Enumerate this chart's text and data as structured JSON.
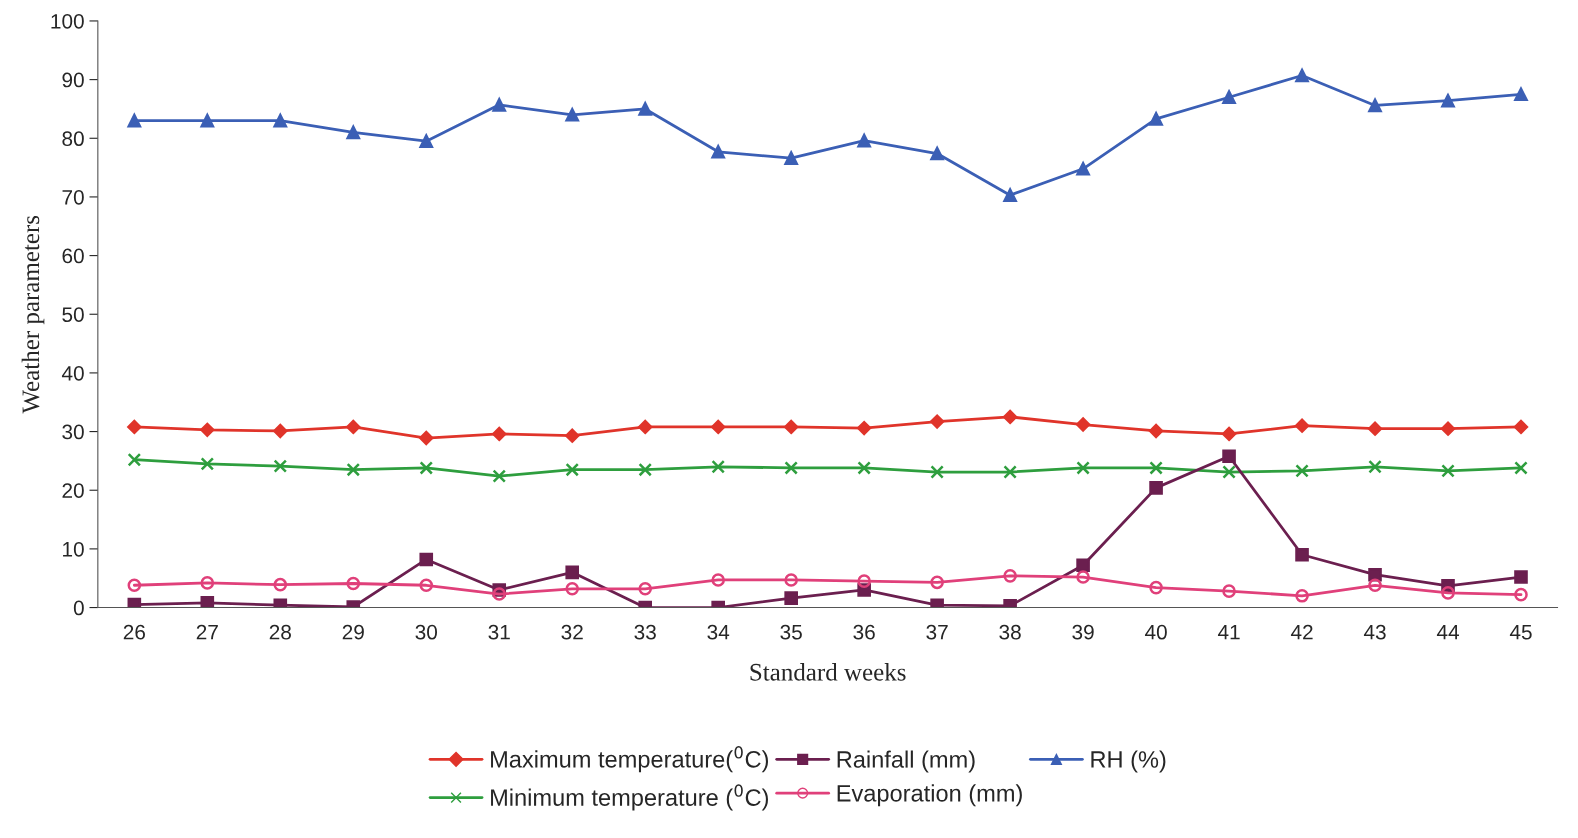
{
  "chart_data": {
    "type": "line",
    "xlabel": "Standard weeks",
    "ylabel": "Weather parameters",
    "categories": [
      "26",
      "27",
      "28",
      "29",
      "30",
      "31",
      "32",
      "33",
      "34",
      "35",
      "36",
      "37",
      "38",
      "39",
      "40",
      "41",
      "42",
      "43",
      "44",
      "45"
    ],
    "ylim": [
      0,
      100
    ],
    "yticks": [
      0,
      10,
      20,
      30,
      40,
      50,
      60,
      70,
      80,
      90,
      100
    ],
    "grid": false,
    "legend": "bottom",
    "line_style": "solid",
    "series": [
      {
        "name": "Maximum temperature($^{0}$C)",
        "color": "#e0342a",
        "marker": "diamond",
        "values": [
          30.8,
          30.3,
          30.1,
          30.8,
          28.9,
          29.6,
          29.3,
          30.8,
          30.8,
          30.8,
          30.6,
          31.7,
          32.5,
          31.2,
          30.1,
          29.6,
          31.0,
          30.5,
          30.5,
          30.8
        ]
      },
      {
        "name": "Minimum temperature ($^{0}$C)",
        "color": "#2e9e3e",
        "marker": "cross",
        "values": [
          25.2,
          24.5,
          24.1,
          23.5,
          23.8,
          22.4,
          23.5,
          23.5,
          24.0,
          23.8,
          23.8,
          23.1,
          23.1,
          23.8,
          23.8,
          23.1,
          23.3,
          24.0,
          23.3,
          23.8
        ]
      },
      {
        "name": "Rainfall (mm)",
        "color": "#6b1f4f",
        "marker": "square",
        "values": [
          0.5,
          0.8,
          0.4,
          0.1,
          8.2,
          3.0,
          6.0,
          0.0,
          0.0,
          1.6,
          3.0,
          0.4,
          0.3,
          7.2,
          20.4,
          25.8,
          9.0,
          5.6,
          3.7,
          5.2
        ]
      },
      {
        "name": "Evaporation (mm)",
        "color": "#e0407a",
        "marker": "circle",
        "values": [
          3.8,
          4.2,
          3.9,
          4.1,
          3.8,
          2.3,
          3.2,
          3.2,
          4.7,
          4.7,
          4.5,
          4.3,
          5.4,
          5.2,
          3.4,
          2.8,
          2.0,
          3.8,
          2.5,
          2.2
        ]
      },
      {
        "name": "RH (%)",
        "color": "#3b5fb5",
        "marker": "triangle",
        "values": [
          83,
          83,
          83,
          81,
          79.5,
          85.7,
          84,
          85,
          77.7,
          76.6,
          79.6,
          77.4,
          70.3,
          74.8,
          83.3,
          87,
          90.7,
          85.6,
          86.4,
          87.5
        ]
      }
    ]
  }
}
